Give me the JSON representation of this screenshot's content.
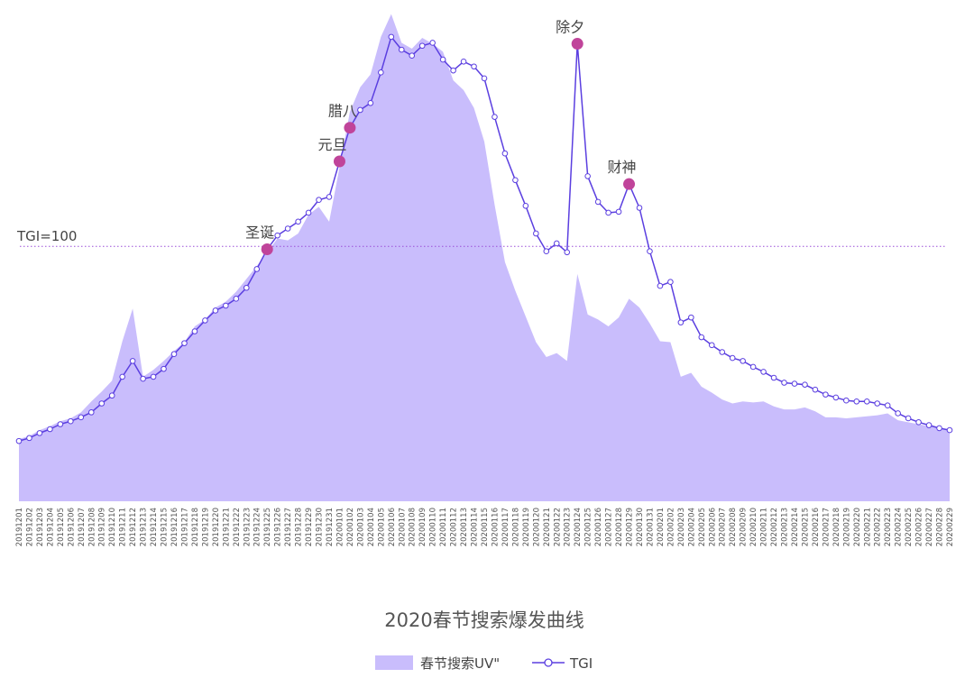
{
  "chart_data": {
    "type": "line",
    "title": "2020春节搜索爆发曲线",
    "categories": [
      "20191201",
      "20191202",
      "20191203",
      "20191204",
      "20191205",
      "20191206",
      "20191207",
      "20191208",
      "20191209",
      "20191210",
      "20191211",
      "20191212",
      "20191213",
      "20191214",
      "20191215",
      "20191216",
      "20191217",
      "20191218",
      "20191219",
      "20191220",
      "20191221",
      "20191222",
      "20191223",
      "20191224",
      "20191225",
      "20191226",
      "20191227",
      "20191228",
      "20191229",
      "20191230",
      "20191231",
      "20200101",
      "20200102",
      "20200103",
      "20200104",
      "20200105",
      "20200106",
      "20200107",
      "20200108",
      "20200109",
      "20200110",
      "20200111",
      "20200112",
      "20200113",
      "20200114",
      "20200115",
      "20200116",
      "20200117",
      "20200118",
      "20200119",
      "20200120",
      "20200121",
      "20200122",
      "20200123",
      "20200124",
      "20200125",
      "20200126",
      "20200127",
      "20200128",
      "20200129",
      "20200130",
      "20200131",
      "20200201",
      "20200202",
      "20200203",
      "20200204",
      "20200205",
      "20200206",
      "20200207",
      "20200208",
      "20200209",
      "20200210",
      "20200211",
      "20200212",
      "20200213",
      "20200214",
      "20200215",
      "20200216",
      "20200217",
      "20200218",
      "20200219",
      "20200220",
      "20200221",
      "20200222",
      "20200223",
      "20200224",
      "20200225",
      "20200226",
      "20200227",
      "20200228",
      "20200229"
    ],
    "series": [
      {
        "name": "春节搜索UV\"",
        "kind": "area",
        "color": "#c9bdfc",
        "values": [
          6.3,
          6.6,
          7.2,
          7.6,
          8.1,
          8.4,
          9.0,
          10.1,
          11.1,
          12.2,
          16.2,
          19.5,
          12.6,
          13.3,
          14.2,
          15.2,
          16.1,
          17.7,
          18.4,
          19.6,
          20.2,
          21.2,
          22.5,
          23.8,
          25.2,
          26.6,
          26.4,
          27.1,
          29.0,
          29.8,
          28.3,
          33.8,
          39.4,
          41.9,
          43.2,
          47.0,
          49.3,
          46.4,
          45.8,
          46.9,
          46.3,
          45.5,
          42.6,
          41.6,
          39.8,
          36.4,
          30.0,
          24.2,
          21.3,
          18.7,
          16.1,
          14.6,
          15.0,
          14.2,
          23.0,
          18.9,
          18.4,
          17.7,
          18.6,
          20.5,
          19.6,
          18.0,
          16.2,
          16.1,
          12.6,
          13.0,
          11.6,
          11.0,
          10.3,
          9.9,
          10.1,
          10.0,
          10.1,
          9.6,
          9.3,
          9.3,
          9.5,
          9.1,
          8.5,
          8.5,
          8.4,
          8.5,
          8.6,
          8.7,
          8.9,
          8.2,
          8.0,
          7.8,
          7.6,
          7.4,
          7.3
        ]
      },
      {
        "name": "TGI",
        "kind": "line",
        "color": "#5b3fe0",
        "values": [
          6.1,
          6.4,
          6.9,
          7.3,
          7.8,
          8.1,
          8.5,
          9.0,
          9.9,
          10.7,
          12.6,
          14.2,
          12.4,
          12.6,
          13.4,
          14.9,
          16.0,
          17.2,
          18.3,
          19.3,
          19.8,
          20.5,
          21.6,
          23.5,
          25.5,
          26.9,
          27.6,
          28.3,
          29.2,
          30.5,
          30.8,
          34.4,
          37.8,
          39.6,
          40.3,
          43.4,
          47.0,
          45.7,
          45.1,
          46.1,
          46.4,
          44.7,
          43.6,
          44.5,
          44.0,
          42.8,
          38.9,
          35.2,
          32.5,
          29.9,
          27.1,
          25.3,
          26.1,
          25.2,
          46.3,
          32.9,
          30.3,
          29.2,
          29.3,
          32.1,
          29.7,
          25.3,
          21.8,
          22.2,
          18.1,
          18.6,
          16.6,
          15.8,
          15.1,
          14.5,
          14.2,
          13.6,
          13.1,
          12.5,
          12.0,
          11.9,
          11.8,
          11.3,
          10.8,
          10.5,
          10.2,
          10.1,
          10.1,
          9.9,
          9.7,
          8.9,
          8.4,
          8.0,
          7.7,
          7.4,
          7.2
        ]
      }
    ],
    "reference_line": {
      "label": "TGI=100",
      "value": 25.8,
      "color": "#9b4fd8",
      "style": "dotted"
    },
    "annotations": [
      {
        "label": "圣诞",
        "category": "20191225",
        "color": "#c0449a"
      },
      {
        "label": "元旦",
        "category": "20200101",
        "color": "#c0449a"
      },
      {
        "label": "腊八",
        "category": "20200102",
        "color": "#c0449a"
      },
      {
        "label": "除夕",
        "category": "20200124",
        "color": "#c0449a"
      },
      {
        "label": "财神",
        "category": "20200129",
        "color": "#c0449a"
      }
    ],
    "ylim": [
      0,
      50
    ],
    "grid": false,
    "legend": "bottom-center",
    "xlabel": "",
    "ylabel": ""
  }
}
